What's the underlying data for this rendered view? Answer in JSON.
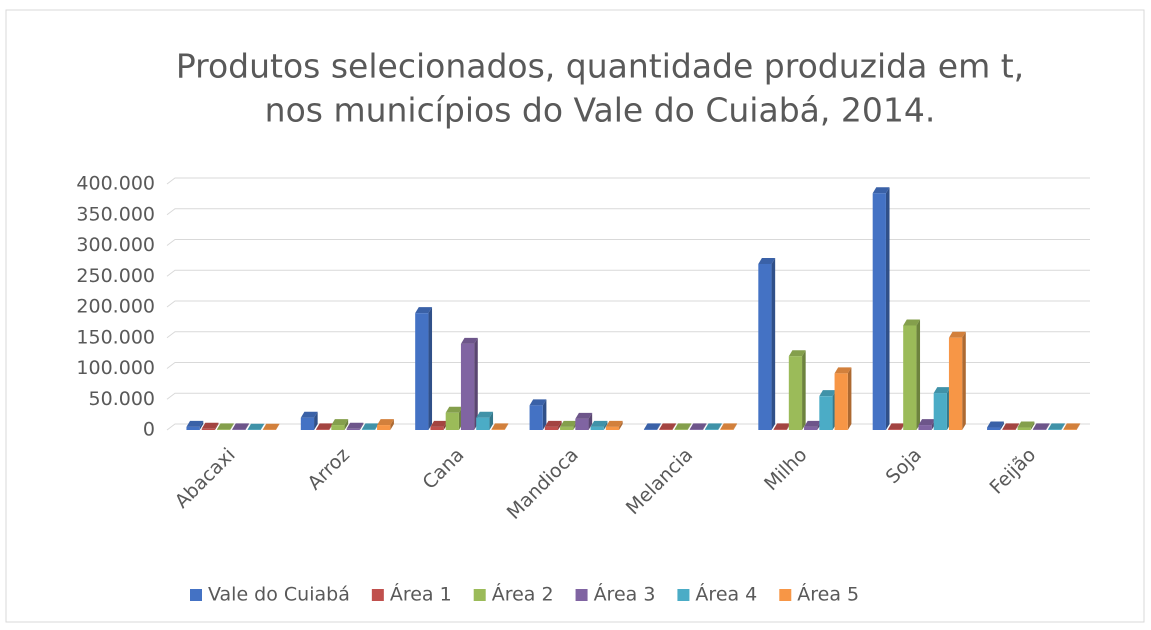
{
  "chart_data": {
    "type": "bar",
    "title": [
      "Produtos selecionados, quantidade produzida em t,",
      "nos municípios do Vale do Cuiabá, 2014."
    ],
    "categories": [
      "Abacaxi",
      "Arroz",
      "Cana",
      "Mandioca",
      "Melancia",
      "Milho",
      "Soja",
      "Feijão"
    ],
    "series": [
      {
        "name": "Vale do Cuiabá",
        "color": "#4472c4",
        "values": [
          5000,
          20000,
          190000,
          40000,
          1000,
          270000,
          385000,
          4000
        ]
      },
      {
        "name": "Área 1",
        "color": "#c0504d",
        "values": [
          2000,
          1000,
          5000,
          5000,
          1000,
          1000,
          1000,
          1000
        ]
      },
      {
        "name": "Área 2",
        "color": "#9bbb59",
        "values": [
          1000,
          8000,
          28000,
          5000,
          1000,
          120000,
          170000,
          4000
        ]
      },
      {
        "name": "Área 3",
        "color": "#8064a2",
        "values": [
          1000,
          2000,
          140000,
          18000,
          1000,
          5000,
          8000,
          1000
        ]
      },
      {
        "name": "Área 4",
        "color": "#4bacc6",
        "values": [
          500,
          1000,
          20000,
          5000,
          1000,
          55000,
          60000,
          1000
        ]
      },
      {
        "name": "Área 5",
        "color": "#f79646",
        "values": [
          500,
          8000,
          1000,
          5000,
          1000,
          92000,
          150000,
          1000
        ]
      }
    ],
    "ylim": [
      0,
      400000
    ],
    "yticks": [
      0,
      {
        "value": 50000,
        "label": "50.000"
      },
      {
        "value": 100000,
        "label": "100.000"
      },
      {
        "value": 150000,
        "label": "150.000"
      },
      {
        "value": 200000,
        "label": "200.000"
      },
      {
        "value": 250000,
        "label": "250.000"
      },
      {
        "value": 300000,
        "label": "300.000"
      },
      {
        "value": 350000,
        "label": "350.000"
      },
      {
        "value": 400000,
        "label": "400.000"
      }
    ],
    "grid": true,
    "legend": "bottom"
  }
}
